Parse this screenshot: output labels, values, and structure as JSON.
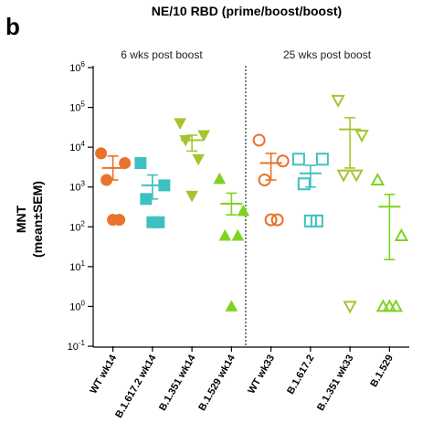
{
  "panel_letter": "b",
  "chart_data": {
    "type": "scatter",
    "title": "NE/10 RBD (prime/boost/boost)",
    "ylabel": "MNT",
    "ylabel2": "(mean±SEM)",
    "yscale": "log",
    "ylim": [
      0.1,
      1000000
    ],
    "ytick_exponents": [
      -1,
      0,
      1,
      2,
      3,
      4,
      5,
      6
    ],
    "ytick_base": "10",
    "group_labels": [
      "6 wks post boost",
      "25 wks post boost"
    ],
    "categories": [
      "WT wk14",
      "B.1.617.2 wk14",
      "B.1.351 wk14",
      "B.1.529 wk14",
      "WT wk33",
      "B.1.617.2",
      "B.1.351 wk33",
      "B.1.529"
    ],
    "series": [
      {
        "color": "#E8732A",
        "marker": "circle",
        "filled": true,
        "values": [
          7000,
          4000,
          1500,
          150,
          150
        ],
        "mean": 3000,
        "sem_low": 1500,
        "sem_high": 6000
      },
      {
        "color": "#3EC0C0",
        "marker": "square",
        "filled": true,
        "values": [
          4000,
          1100,
          500,
          130,
          130
        ],
        "mean": 1100,
        "sem_low": 500,
        "sem_high": 2000
      },
      {
        "color": "#A5C530",
        "marker": "triangle-down",
        "filled": true,
        "values": [
          40000,
          20000,
          15000,
          5000,
          600
        ],
        "mean": 15000,
        "sem_low": 8000,
        "sem_high": 20000
      },
      {
        "color": "#7ED321",
        "marker": "triangle-up",
        "filled": true,
        "values": [
          1600,
          250,
          60,
          60,
          1
        ],
        "mean": 380,
        "sem_low": 200,
        "sem_high": 700
      },
      {
        "color": "#E8732A",
        "marker": "circle",
        "filled": false,
        "values": [
          15000,
          4500,
          1500,
          150,
          150
        ],
        "mean": 4000,
        "sem_low": 1500,
        "sem_high": 7000
      },
      {
        "color": "#3EC0C0",
        "marker": "square",
        "filled": false,
        "values": [
          5000,
          5000,
          1200,
          140,
          140
        ],
        "mean": 2200,
        "sem_low": 1000,
        "sem_high": 3500
      },
      {
        "color": "#A5C530",
        "marker": "triangle-down",
        "filled": false,
        "values": [
          150000,
          20000,
          2000,
          2000,
          1
        ],
        "mean": 28000,
        "sem_low": 3000,
        "sem_high": 55000
      },
      {
        "color": "#7ED321",
        "marker": "triangle-up",
        "filled": false,
        "values": [
          1500,
          60,
          1,
          1,
          1
        ],
        "mean": 320,
        "sem_low": 15,
        "sem_high": 650
      }
    ]
  }
}
